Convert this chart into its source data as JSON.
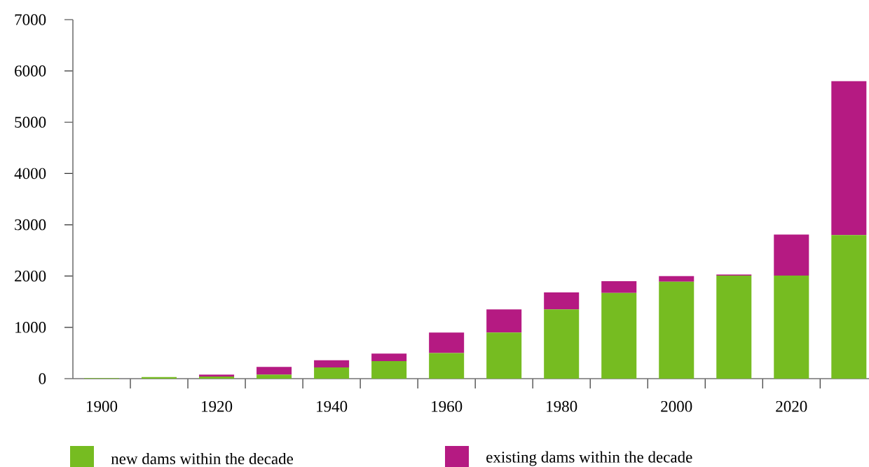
{
  "chart_data": {
    "type": "bar",
    "stacked": true,
    "categories": [
      "1900",
      null,
      "1920",
      null,
      "1940",
      null,
      "1960",
      null,
      "1980",
      null,
      "2000",
      null,
      "2020",
      null
    ],
    "series": [
      {
        "name": "new dams within the decade",
        "color": "#76bc21",
        "values": [
          10,
          30,
          40,
          80,
          220,
          340,
          500,
          900,
          1350,
          1670,
          1890,
          2010,
          2010,
          2800
        ]
      },
      {
        "name": "existing dams within the decade",
        "color": "#b51a82",
        "values": [
          0,
          0,
          40,
          150,
          140,
          150,
          400,
          450,
          330,
          230,
          110,
          20,
          800,
          3000
        ]
      }
    ],
    "ylim": [
      0,
      7000
    ],
    "yticks": [
      0,
      1000,
      2000,
      3000,
      4000,
      5000,
      6000,
      7000
    ],
    "legend": "bottom"
  }
}
